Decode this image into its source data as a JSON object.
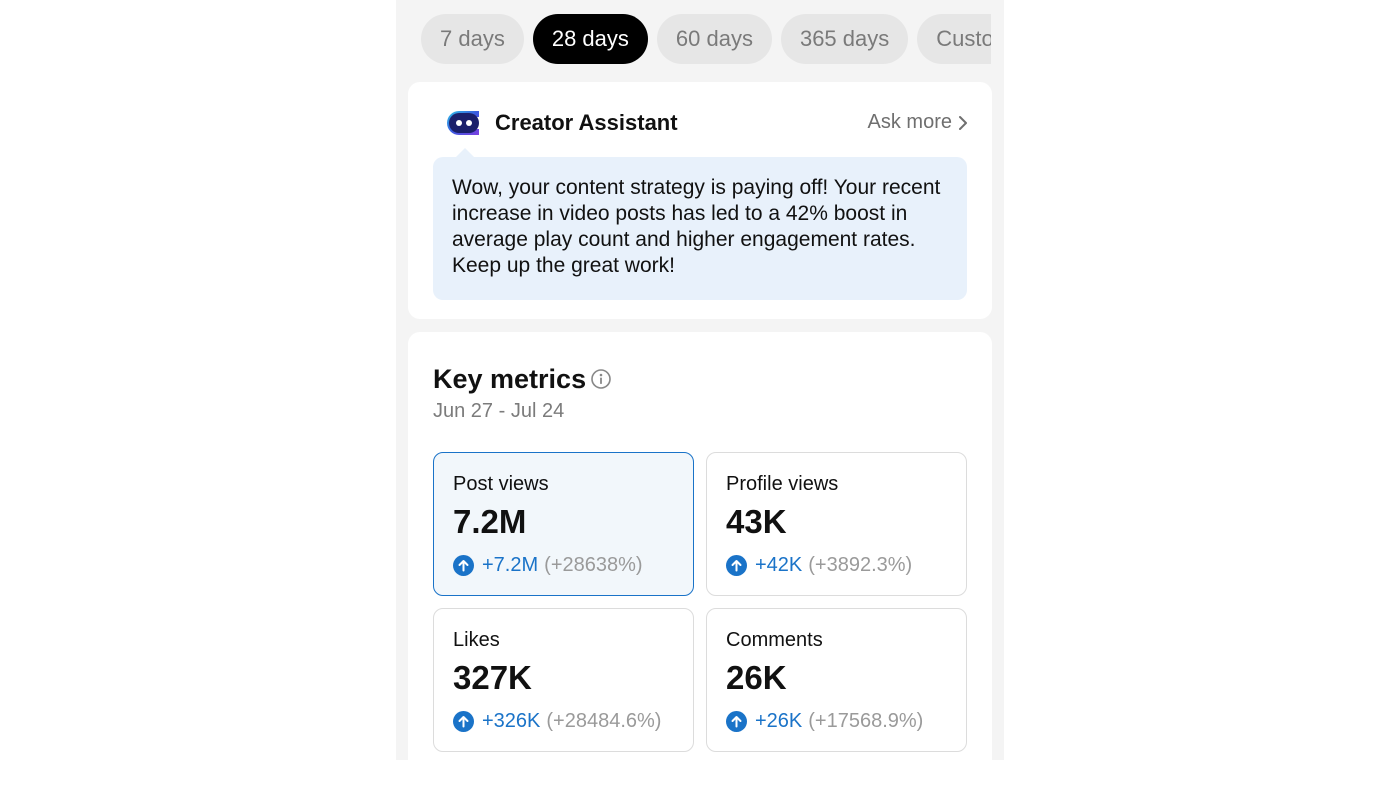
{
  "range_tabs": [
    {
      "label": "7 days",
      "active": false
    },
    {
      "label": "28 days",
      "active": true
    },
    {
      "label": "60 days",
      "active": false
    },
    {
      "label": "365 days",
      "active": false
    },
    {
      "label": "Custom",
      "active": false
    }
  ],
  "assistant": {
    "title": "Creator Assistant",
    "ask_more": "Ask more",
    "message": "Wow, your content strategy is paying off! Your recent increase in video posts has led to a 42% boost in average play count and higher engagement rates. Keep up the great work!"
  },
  "key_metrics": {
    "title": "Key metrics",
    "date_range": "Jun 27 - Jul 24",
    "cards": [
      {
        "label": "Post views",
        "value": "7.2M",
        "delta": "+7.2M",
        "percent": "(+28638%)"
      },
      {
        "label": "Profile views",
        "value": "43K",
        "delta": "+42K",
        "percent": "(+3892.3%)"
      },
      {
        "label": "Likes",
        "value": "327K",
        "delta": "+326K",
        "percent": "(+28484.6%)"
      },
      {
        "label": "Comments",
        "value": "26K",
        "delta": "+26K",
        "percent": "(+17568.9%)"
      }
    ]
  },
  "colors": {
    "accent": "#1a73c8",
    "bubble_bg": "#e8f1fb",
    "active_tab": "#000000"
  },
  "icons": [
    "assistant-logo-icon",
    "chevron-right-icon",
    "info-icon",
    "arrow-up-circle-icon"
  ]
}
